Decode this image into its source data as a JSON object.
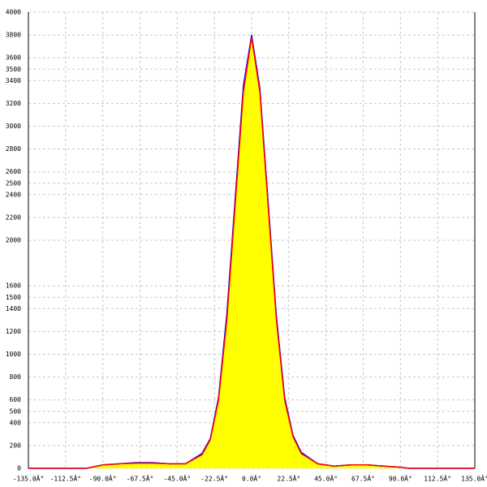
{
  "chart_data": {
    "type": "area",
    "x": [
      -135,
      -100,
      -90,
      -80,
      -70,
      -60,
      -50,
      -40,
      -30,
      -25,
      -20,
      -15,
      -10,
      -5,
      0,
      5,
      10,
      15,
      20,
      25,
      30,
      40,
      50,
      60,
      70,
      80,
      90,
      95,
      135
    ],
    "series": [
      {
        "color": "#0000ff",
        "values": [
          0,
          0,
          30,
          40,
          50,
          50,
          40,
          40,
          130,
          260,
          620,
          1350,
          2350,
          3350,
          3800,
          3330,
          2330,
          1330,
          620,
          290,
          140,
          40,
          20,
          30,
          30,
          20,
          10,
          0,
          0
        ]
      },
      {
        "color": "#ff0000",
        "values": [
          0,
          0,
          30,
          40,
          45,
          45,
          40,
          40,
          120,
          250,
          600,
          1300,
          2300,
          3300,
          3780,
          3300,
          2300,
          1300,
          600,
          280,
          130,
          40,
          20,
          30,
          30,
          20,
          10,
          0,
          0
        ]
      }
    ],
    "area_color": "#ffff00",
    "xlim": [
      -135,
      135
    ],
    "ylim": [
      0,
      4000
    ],
    "xticks": [
      {
        "value": -135,
        "label": "-135.0Â°"
      },
      {
        "value": -112.5,
        "label": "-112.5Â°"
      },
      {
        "value": -90,
        "label": "-90.0Â°"
      },
      {
        "value": -67.5,
        "label": "-67.5Â°"
      },
      {
        "value": -45,
        "label": "-45.0Â°"
      },
      {
        "value": -22.5,
        "label": "-22.5Â°"
      },
      {
        "value": 0,
        "label": "0.0Â°"
      },
      {
        "value": 22.5,
        "label": "22.5Â°"
      },
      {
        "value": 45,
        "label": "45.0Â°"
      },
      {
        "value": 67.5,
        "label": "67.5Â°"
      },
      {
        "value": 90,
        "label": "90.0Â°"
      },
      {
        "value": 112.5,
        "label": "112.5Â°"
      },
      {
        "value": 135,
        "label": "135.0Â°"
      }
    ],
    "yticks": [
      0,
      200,
      400,
      500,
      600,
      800,
      1000,
      1200,
      1400,
      1500,
      1600,
      2000,
      2200,
      2400,
      2500,
      2600,
      2800,
      3000,
      3200,
      3400,
      3500,
      3600,
      3800,
      4000
    ],
    "grid": true
  }
}
